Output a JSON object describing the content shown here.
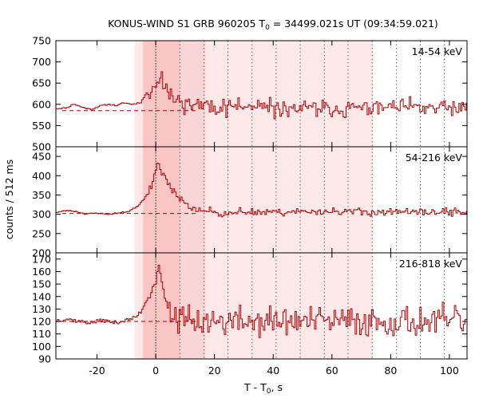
{
  "chart_data": {
    "type": "line",
    "title": "KONUS-WIND S1 GRB 960205 T",
    "title_sub": "0",
    "title_rest": " = 34499.021s UT (09:34:59.021)",
    "xlabel": "T - T",
    "xlabel_sub": "0",
    "xlabel_rest": ", s",
    "ylabel": "counts / 512 ms",
    "xlim": [
      -34,
      106
    ],
    "x_ticks": [
      -20,
      0,
      20,
      40,
      60,
      80,
      100
    ],
    "x_tick_labels": [
      "-20",
      "0",
      "20",
      "40",
      "60",
      "80",
      "100"
    ],
    "bin_width_s": 0.512,
    "shading": {
      "light_band": [
        -7.2,
        74.0
      ],
      "mid_band": [
        -4.5,
        17.0
      ],
      "dark_band": [
        -4.2,
        8.2
      ],
      "band_colors": [
        "#fde9e9",
        "#fbd6d6",
        "#f9c5c5"
      ]
    },
    "dotted_lines_x": [
      0,
      8.2,
      16.4,
      24.6,
      32.8,
      41.0,
      49.2,
      57.4,
      65.5,
      73.7,
      81.9,
      90.1,
      98.3
    ],
    "colors": {
      "series": "#b00000",
      "dashed": "#b00000",
      "frame": "#000000"
    },
    "panels": [
      {
        "band_label": "14-54 keV",
        "ylim": [
          500,
          750
        ],
        "y_ticks": [
          500,
          550,
          600,
          650,
          700,
          750
        ],
        "y_tick_labels": [
          "500",
          "550",
          "600",
          "650",
          "700",
          "750"
        ],
        "background": 585,
        "keypoints": [
          [
            -34,
            590
          ],
          [
            -30,
            592
          ],
          [
            -28,
            601
          ],
          [
            -25,
            593
          ],
          [
            -22,
            588
          ],
          [
            -19,
            596
          ],
          [
            -16,
            600
          ],
          [
            -13,
            597
          ],
          [
            -11,
            604
          ],
          [
            -8,
            600
          ],
          [
            -5,
            605
          ],
          [
            -3,
            628
          ],
          [
            -2,
            615
          ],
          [
            -1,
            643
          ],
          [
            0,
            640
          ],
          [
            1,
            660
          ],
          [
            2,
            675
          ],
          [
            3,
            640
          ],
          [
            4,
            630
          ],
          [
            6,
            612
          ],
          [
            10,
            602
          ],
          [
            20,
            595
          ],
          [
            40,
            590
          ],
          [
            60,
            590
          ],
          [
            80,
            592
          ],
          [
            106,
            590
          ]
        ],
        "noise_amplitude": 20,
        "noise_start": 0,
        "seed": 11
      },
      {
        "band_label": "54-216 keV",
        "ylim": [
          200,
          475
        ],
        "y_ticks": [
          200,
          250,
          300,
          350,
          400,
          450
        ],
        "y_tick_labels": [
          "200",
          "250",
          "300",
          "350",
          "400",
          "450"
        ],
        "background": 302,
        "keypoints": [
          [
            -34,
            305
          ],
          [
            -30,
            310
          ],
          [
            -27,
            307
          ],
          [
            -24,
            301
          ],
          [
            -20,
            303
          ],
          [
            -16,
            300
          ],
          [
            -12,
            304
          ],
          [
            -9,
            308
          ],
          [
            -6,
            322
          ],
          [
            -4,
            340
          ],
          [
            -2,
            365
          ],
          [
            -1,
            385
          ],
          [
            0,
            410
          ],
          [
            0.5,
            432
          ],
          [
            1,
            425
          ],
          [
            2,
            410
          ],
          [
            3,
            398
          ],
          [
            4,
            385
          ],
          [
            6,
            360
          ],
          [
            8,
            340
          ],
          [
            10,
            325
          ],
          [
            14,
            312
          ],
          [
            20,
            305
          ],
          [
            40,
            306
          ],
          [
            60,
            308
          ],
          [
            80,
            305
          ],
          [
            106,
            306
          ]
        ],
        "noise_amplitude": 10,
        "noise_start": -3,
        "seed": 23
      },
      {
        "band_label": "216-818 keV",
        "ylim": [
          90,
          175
        ],
        "y_ticks": [
          90,
          100,
          110,
          120,
          130,
          140,
          150,
          160,
          170
        ],
        "y_tick_labels": [
          "90",
          "100",
          "110",
          "120",
          "130",
          "140",
          "150",
          "160",
          "170"
        ],
        "background": 120,
        "keypoints": [
          [
            -34,
            121
          ],
          [
            -30,
            122
          ],
          [
            -26,
            120
          ],
          [
            -22,
            119
          ],
          [
            -18,
            121
          ],
          [
            -14,
            119
          ],
          [
            -10,
            121
          ],
          [
            -7,
            123
          ],
          [
            -5,
            128
          ],
          [
            -3,
            138
          ],
          [
            -2,
            140
          ],
          [
            -1,
            148
          ],
          [
            0,
            150
          ],
          [
            0.5,
            160
          ],
          [
            1,
            165
          ],
          [
            2,
            152
          ],
          [
            3,
            140
          ],
          [
            4,
            132
          ],
          [
            6,
            125
          ],
          [
            10,
            120
          ],
          [
            30,
            120
          ],
          [
            60,
            120
          ],
          [
            106,
            120
          ]
        ],
        "noise_amplitude": 12,
        "noise_start": 4,
        "seed": 37
      }
    ]
  }
}
